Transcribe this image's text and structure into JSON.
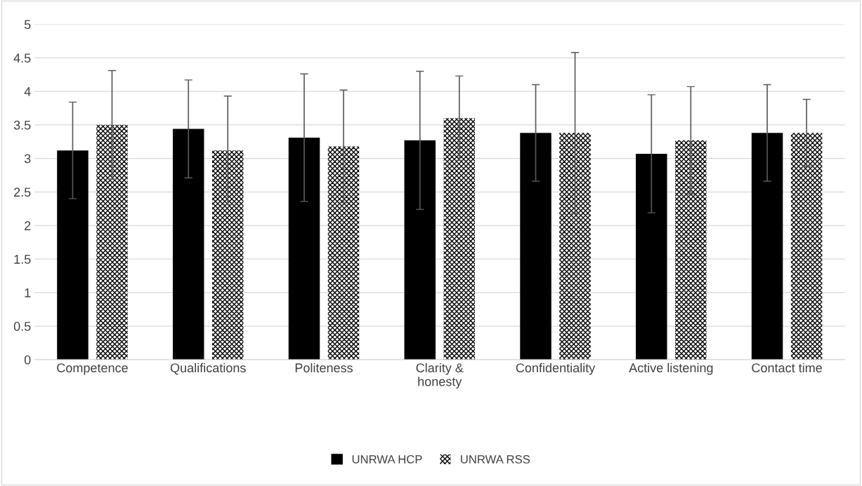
{
  "chart_data": {
    "type": "bar",
    "categories": [
      "Competence",
      "Qualifications",
      "Politeness",
      "Clarity &\nhonesty",
      "Confidentiality",
      "Active listening",
      "Contact time"
    ],
    "series": [
      {
        "name": "UNRWA HCP",
        "color": "#000000",
        "values": [
          3.12,
          3.44,
          3.31,
          3.27,
          3.38,
          3.07,
          3.38
        ],
        "errors": [
          0.72,
          0.73,
          0.95,
          1.03,
          0.72,
          0.88,
          0.72
        ]
      },
      {
        "name": "UNRWA RSS",
        "color": "#000000",
        "values": [
          3.5,
          3.12,
          3.18,
          3.6,
          3.38,
          3.27,
          3.38
        ],
        "errors": [
          0.81,
          0.81,
          0.84,
          0.63,
          1.2,
          0.8,
          0.5
        ]
      }
    ],
    "ylim": [
      0,
      5
    ],
    "yticks": [
      0,
      0.5,
      1,
      1.5,
      2,
      2.5,
      3,
      3.5,
      4,
      4.5,
      5
    ],
    "grid": "y",
    "legend": "bottom"
  }
}
